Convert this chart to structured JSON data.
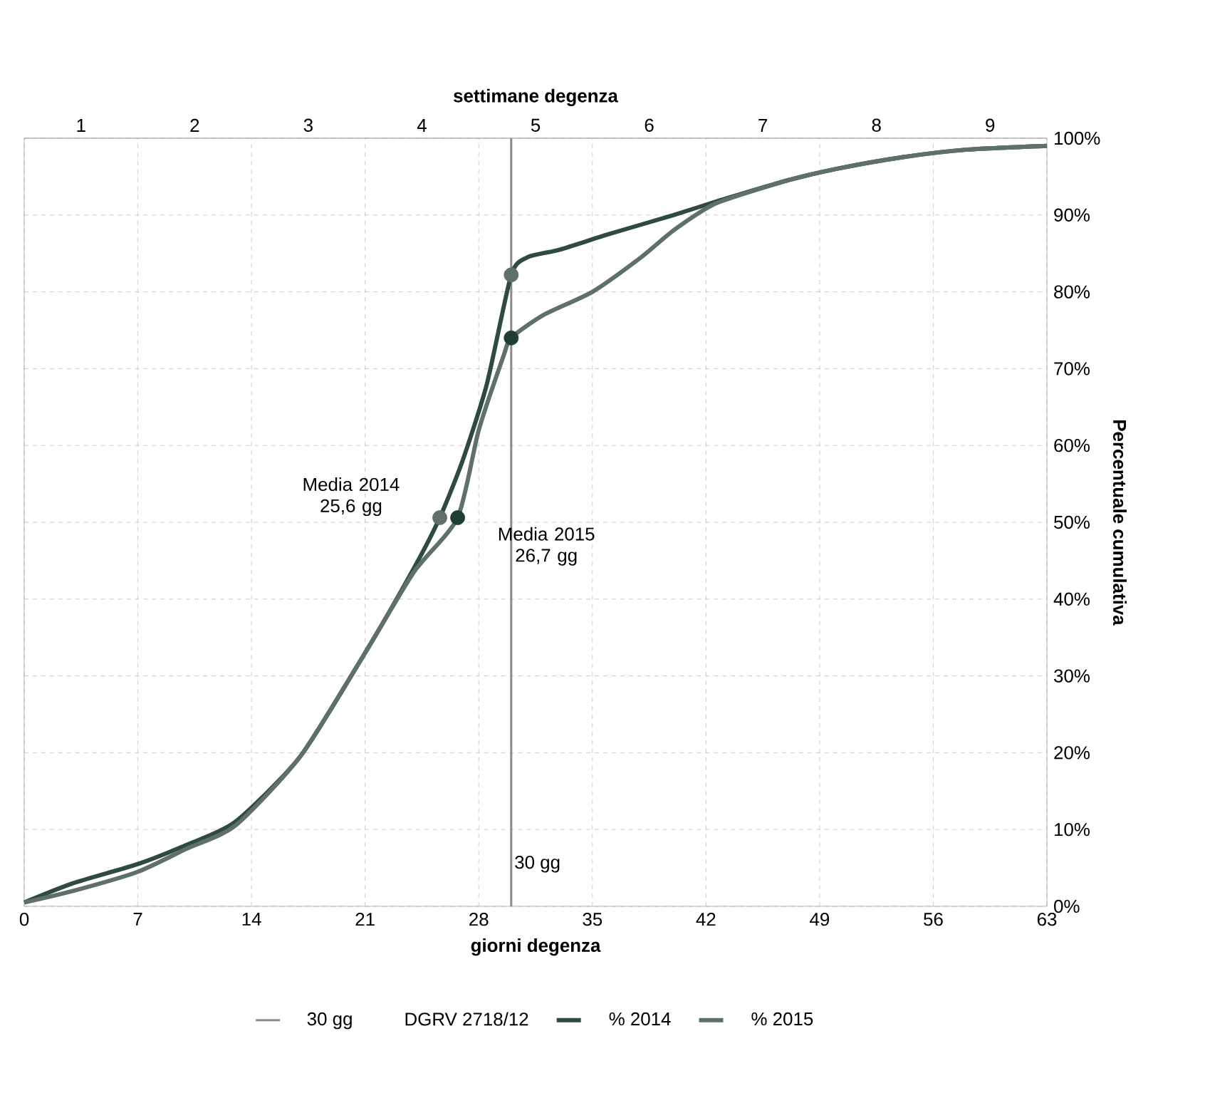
{
  "chart_data": {
    "type": "line",
    "xlabel": "giorni degenza",
    "x2label": "settimane degenza",
    "ylabel": "Percentuale cumulativa",
    "xlim": [
      0,
      63
    ],
    "xticks": [
      0,
      7,
      14,
      21,
      28,
      35,
      42,
      49,
      56,
      63
    ],
    "x2lim": [
      0.5,
      9.5
    ],
    "x2ticks": [
      1,
      2,
      3,
      4,
      5,
      6,
      7,
      8,
      9
    ],
    "ylim": [
      0,
      100
    ],
    "yticks": [
      {
        "value": 0,
        "label": "0%"
      },
      {
        "value": 10,
        "label": "10%"
      },
      {
        "value": 20,
        "label": "20%"
      },
      {
        "value": 30,
        "label": "30%"
      },
      {
        "value": 40,
        "label": "40%"
      },
      {
        "value": 50,
        "label": "50%"
      },
      {
        "value": 60,
        "label": "60%"
      },
      {
        "value": 70,
        "label": "70%"
      },
      {
        "value": 80,
        "label": "80%"
      },
      {
        "value": 90,
        "label": "90%"
      },
      {
        "value": 100,
        "label": "100%"
      }
    ],
    "grid": true,
    "legend": "bottom",
    "line_style": "solid",
    "series": [
      {
        "name": "% 2014",
        "color": "#2f4a43",
        "x": [
          0,
          3,
          7,
          10,
          13,
          17,
          21,
          24,
          25.6,
          27,
          28.5,
          30,
          31,
          33,
          36,
          40,
          43,
          47,
          50,
          54,
          58,
          63
        ],
        "values": [
          0.5,
          3,
          5.5,
          8,
          11,
          19.5,
          33,
          44,
          50.6,
          58,
          68,
          82.2,
          84.5,
          85.5,
          87.5,
          90,
          92,
          94.5,
          96,
          97.5,
          98.5,
          99
        ]
      },
      {
        "name": "% 2015",
        "color": "#5f6f6a",
        "x": [
          0,
          3,
          7,
          10,
          13,
          17,
          21,
          24,
          26.7,
          28,
          29.5,
          30,
          32,
          35,
          38,
          40,
          42.6,
          47,
          50,
          54,
          58,
          63
        ],
        "values": [
          0.5,
          2,
          4.5,
          7.5,
          10.5,
          19.5,
          33,
          43.5,
          50.6,
          62,
          71.5,
          74,
          77,
          80,
          84.5,
          88,
          91.5,
          94.5,
          96,
          97.5,
          98.5,
          99
        ]
      },
      {
        "type": "scatter",
        "marker": "circle",
        "x": [
          25.6,
          26.7,
          30,
          30
        ],
        "values": [
          50.6,
          50.6,
          82.2,
          74
        ],
        "colors": [
          "#5f6f6a",
          "#1f3d35",
          "#5f6f6a",
          "#1f3d35"
        ]
      }
    ],
    "ref_lines": [
      {
        "axis": "x",
        "value": 30,
        "label": "30 gg",
        "color": "#8a8a8a"
      }
    ],
    "annotations": [
      {
        "text": "Media 2014 25,6 gg",
        "x": 25.6,
        "y": 50.6
      },
      {
        "text": "Media 2015 26,7 gg",
        "x": 26.7,
        "y": 50.6
      },
      "DGRV 2718/12"
    ]
  }
}
